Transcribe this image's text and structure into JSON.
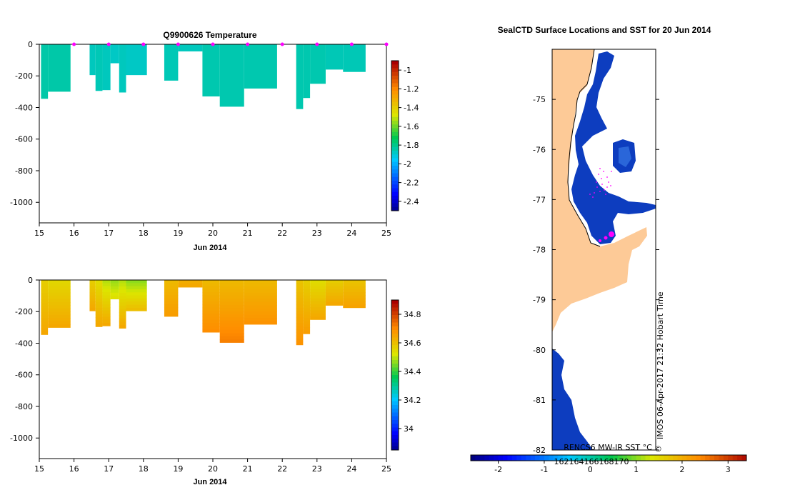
{
  "chart_data": [
    {
      "type": "heatmap",
      "title": "Q9900626  Temperature",
      "xlabel": "Jun 2014",
      "x_ticks": [
        "15",
        "16",
        "17",
        "18",
        "19",
        "20",
        "21",
        "22",
        "23",
        "24",
        "25"
      ],
      "xlim": [
        15,
        25
      ],
      "y_ticks": [
        "0",
        "-200",
        "-400",
        "-600",
        "-800",
        "-1000"
      ],
      "ylim": [
        -1130,
        0
      ],
      "colorbar_ticks": [
        "-1",
        "-1.2",
        "-1.4",
        "-1.6",
        "-1.8",
        "-2",
        "-2.2",
        "-2.4"
      ],
      "colorbar_range": [
        -2.5,
        -0.9
      ],
      "profile_markers": [
        16,
        17,
        18,
        19,
        20,
        21,
        22,
        23,
        24,
        25
      ],
      "profiles": [
        {
          "start": 15.05,
          "end": 15.25,
          "depth": 345,
          "value": -1.82
        },
        {
          "start": 15.25,
          "end": 15.9,
          "depth": 300,
          "value": -1.82
        },
        {
          "start": 16.45,
          "end": 16.62,
          "depth": 195,
          "value": -1.85
        },
        {
          "start": 16.62,
          "end": 16.82,
          "depth": 295,
          "value": -1.84
        },
        {
          "start": 16.82,
          "end": 17.05,
          "depth": 290,
          "value": -1.85
        },
        {
          "start": 17.05,
          "end": 17.3,
          "depth": 120,
          "value": -1.86
        },
        {
          "start": 17.3,
          "end": 17.5,
          "depth": 305,
          "value": -1.85
        },
        {
          "start": 17.5,
          "end": 18.1,
          "depth": 195,
          "value": -1.86
        },
        {
          "start": 18.6,
          "end": 19.0,
          "depth": 230,
          "value": -1.84
        },
        {
          "start": 19.0,
          "end": 19.7,
          "depth": 45,
          "value": -1.85
        },
        {
          "start": 19.7,
          "end": 20.2,
          "depth": 330,
          "value": -1.83
        },
        {
          "start": 20.2,
          "end": 20.9,
          "depth": 395,
          "value": -1.83
        },
        {
          "start": 20.9,
          "end": 21.85,
          "depth": 280,
          "value": -1.83
        },
        {
          "start": 22.4,
          "end": 22.6,
          "depth": 410,
          "value": -1.83
        },
        {
          "start": 22.6,
          "end": 22.8,
          "depth": 340,
          "value": -1.83
        },
        {
          "start": 22.8,
          "end": 23.25,
          "depth": 250,
          "value": -1.83
        },
        {
          "start": 23.25,
          "end": 23.75,
          "depth": 160,
          "value": -1.84
        },
        {
          "start": 23.75,
          "end": 24.4,
          "depth": 175,
          "value": -1.84
        }
      ]
    },
    {
      "type": "heatmap",
      "title": "",
      "xlabel": "Jun 2014",
      "x_ticks": [
        "15",
        "16",
        "17",
        "18",
        "19",
        "20",
        "21",
        "22",
        "23",
        "24",
        "25"
      ],
      "xlim": [
        15,
        25
      ],
      "y_ticks": [
        "0",
        "-200",
        "-400",
        "-600",
        "-800",
        "-1000"
      ],
      "ylim": [
        -1130,
        0
      ],
      "colorbar_ticks": [
        "34.8",
        "34.6",
        "34.4",
        "34.2",
        "34"
      ],
      "colorbar_range": [
        33.85,
        34.9
      ],
      "profiles": [
        {
          "start": 15.05,
          "end": 15.25,
          "depth": 345,
          "surface": 34.58,
          "bottom": 34.66
        },
        {
          "start": 15.25,
          "end": 15.9,
          "depth": 300,
          "surface": 34.56,
          "bottom": 34.66
        },
        {
          "start": 16.45,
          "end": 16.62,
          "depth": 195,
          "surface": 34.58,
          "bottom": 34.66
        },
        {
          "start": 16.62,
          "end": 16.82,
          "depth": 295,
          "surface": 34.55,
          "bottom": 34.66
        },
        {
          "start": 16.82,
          "end": 17.05,
          "depth": 290,
          "surface": 34.5,
          "bottom": 34.66
        },
        {
          "start": 17.05,
          "end": 17.3,
          "depth": 120,
          "surface": 34.48,
          "bottom": 34.55
        },
        {
          "start": 17.3,
          "end": 17.5,
          "depth": 305,
          "surface": 34.5,
          "bottom": 34.66
        },
        {
          "start": 17.5,
          "end": 18.1,
          "depth": 195,
          "surface": 34.47,
          "bottom": 34.62
        },
        {
          "start": 18.6,
          "end": 19.0,
          "depth": 230,
          "surface": 34.62,
          "bottom": 34.68
        },
        {
          "start": 19.0,
          "end": 19.7,
          "depth": 45,
          "surface": 34.64,
          "bottom": 34.66
        },
        {
          "start": 19.7,
          "end": 20.2,
          "depth": 330,
          "surface": 34.62,
          "bottom": 34.71
        },
        {
          "start": 20.2,
          "end": 20.9,
          "depth": 395,
          "surface": 34.62,
          "bottom": 34.73
        },
        {
          "start": 20.9,
          "end": 21.85,
          "depth": 280,
          "surface": 34.62,
          "bottom": 34.7
        },
        {
          "start": 22.4,
          "end": 22.6,
          "depth": 410,
          "surface": 34.6,
          "bottom": 34.7
        },
        {
          "start": 22.6,
          "end": 22.8,
          "depth": 340,
          "surface": 34.58,
          "bottom": 34.68
        },
        {
          "start": 22.8,
          "end": 23.25,
          "depth": 250,
          "surface": 34.55,
          "bottom": 34.66
        },
        {
          "start": 23.25,
          "end": 23.75,
          "depth": 160,
          "surface": 34.58,
          "bottom": 34.66
        },
        {
          "start": 23.75,
          "end": 24.4,
          "depth": 175,
          "surface": 34.6,
          "bottom": 34.67
        }
      ]
    },
    {
      "type": "heatmap",
      "title": "SealCTD Surface Locations and SST for 20 Jun 2014",
      "y_ticks": [
        "-75",
        "-76",
        "-77",
        "-78",
        "-79",
        "-80",
        "-81",
        "-82"
      ],
      "ylim": [
        -82,
        -74.0
      ],
      "colorbar_label": "RENCS6 MW-IR SST °C",
      "colorbar_ticks": [
        "-2",
        "-1",
        "0",
        "1",
        "2",
        "3"
      ],
      "colorbar_range": [
        -2.6,
        3.4
      ],
      "colorbar_overlay_ticks": [
        "162",
        "164",
        "166",
        "168",
        "170"
      ],
      "side_text": "IMOS 06-Apr-2017 21:32 Hobart Time",
      "copyright": "©",
      "colors": {
        "land": "#fdca97",
        "sea_ice_sst": "#0d3dbf",
        "locations": "#ff00ff"
      }
    }
  ]
}
